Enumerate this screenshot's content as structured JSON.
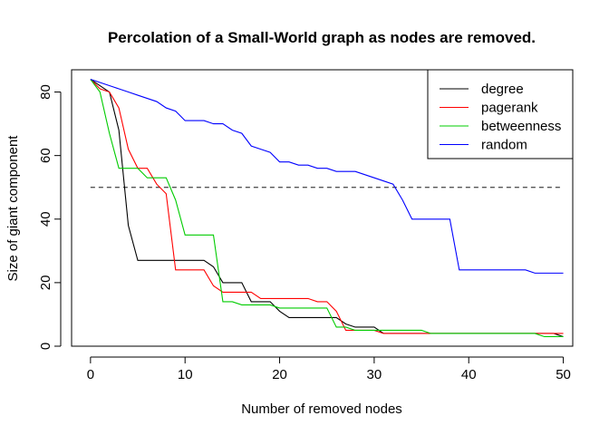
{
  "chart_data": {
    "type": "line",
    "title": "Percolation of a Small-World graph as nodes are removed.",
    "xlabel": "Number of removed nodes",
    "ylabel": "Size of giant component",
    "xlim": [
      -2,
      51
    ],
    "ylim": [
      0,
      87
    ],
    "xticks": [
      0,
      10,
      20,
      30,
      40,
      50
    ],
    "yticks": [
      0,
      20,
      40,
      60,
      80
    ],
    "reference_line": {
      "y": 50,
      "x_range": [
        0,
        50
      ],
      "style": "dashed",
      "color": "#555555"
    },
    "legend": {
      "position": "top-right"
    },
    "series": [
      {
        "name": "degree",
        "color": "#000000",
        "x": [
          0,
          1,
          2,
          3,
          4,
          5,
          6,
          7,
          8,
          9,
          10,
          11,
          12,
          13,
          14,
          15,
          16,
          17,
          18,
          19,
          20,
          21,
          22,
          23,
          24,
          25,
          26,
          27,
          28,
          29,
          30,
          31,
          32,
          33,
          34,
          35,
          36,
          37,
          38,
          39,
          40,
          41,
          42,
          43,
          44,
          45,
          46,
          47,
          48,
          49,
          50
        ],
        "values": [
          84,
          82,
          80,
          68,
          38,
          27,
          27,
          27,
          27,
          27,
          27,
          27,
          27,
          25,
          20,
          20,
          20,
          14,
          14,
          14,
          11,
          9,
          9,
          9,
          9,
          9,
          9,
          7,
          6,
          6,
          6,
          4,
          4,
          4,
          4,
          4,
          4,
          4,
          4,
          4,
          4,
          4,
          4,
          4,
          4,
          4,
          4,
          4,
          4,
          4,
          3
        ]
      },
      {
        "name": "pagerank",
        "color": "#ff0000",
        "x": [
          0,
          1,
          2,
          3,
          4,
          5,
          6,
          7,
          8,
          9,
          10,
          11,
          12,
          13,
          14,
          15,
          16,
          17,
          18,
          19,
          20,
          21,
          22,
          23,
          24,
          25,
          26,
          27,
          28,
          29,
          30,
          31,
          32,
          33,
          34,
          35,
          36,
          37,
          38,
          39,
          40,
          41,
          42,
          43,
          44,
          45,
          46,
          47,
          48,
          49,
          50
        ],
        "values": [
          84,
          81,
          80,
          75,
          62,
          56,
          56,
          51,
          48,
          24,
          24,
          24,
          24,
          19,
          17,
          17,
          17,
          17,
          15,
          15,
          15,
          15,
          15,
          15,
          14,
          14,
          11,
          5,
          5,
          5,
          5,
          4,
          4,
          4,
          4,
          4,
          4,
          4,
          4,
          4,
          4,
          4,
          4,
          4,
          4,
          4,
          4,
          4,
          4,
          4,
          4
        ]
      },
      {
        "name": "betweenness",
        "color": "#00cc00",
        "x": [
          0,
          1,
          2,
          3,
          4,
          5,
          6,
          7,
          8,
          9,
          10,
          11,
          12,
          13,
          14,
          15,
          16,
          17,
          18,
          19,
          20,
          21,
          22,
          23,
          24,
          25,
          26,
          27,
          28,
          29,
          30,
          31,
          32,
          33,
          34,
          35,
          36,
          37,
          38,
          39,
          40,
          41,
          42,
          43,
          44,
          45,
          46,
          47,
          48,
          49,
          50
        ],
        "values": [
          84,
          80,
          67,
          56,
          56,
          56,
          53,
          53,
          53,
          46,
          35,
          35,
          35,
          35,
          14,
          14,
          13,
          13,
          13,
          13,
          12,
          12,
          12,
          12,
          12,
          12,
          6,
          6,
          5,
          5,
          5,
          5,
          5,
          5,
          5,
          5,
          4,
          4,
          4,
          4,
          4,
          4,
          4,
          4,
          4,
          4,
          4,
          4,
          3,
          3,
          3
        ]
      },
      {
        "name": "random",
        "color": "#0000ff",
        "x": [
          0,
          1,
          2,
          3,
          4,
          5,
          6,
          7,
          8,
          9,
          10,
          11,
          12,
          13,
          14,
          15,
          16,
          17,
          18,
          19,
          20,
          21,
          22,
          23,
          24,
          25,
          26,
          27,
          28,
          29,
          30,
          31,
          32,
          33,
          34,
          35,
          36,
          37,
          38,
          39,
          40,
          41,
          42,
          43,
          44,
          45,
          46,
          47,
          48,
          49,
          50
        ],
        "values": [
          84,
          83,
          82,
          81,
          80,
          79,
          78,
          77,
          75,
          74,
          71,
          71,
          71,
          70,
          70,
          68,
          67,
          63,
          62,
          61,
          58,
          58,
          57,
          57,
          56,
          56,
          55,
          55,
          55,
          54,
          53,
          52,
          51,
          46,
          40,
          40,
          40,
          40,
          40,
          24,
          24,
          24,
          24,
          24,
          24,
          24,
          24,
          23,
          23,
          23,
          23
        ]
      }
    ]
  }
}
